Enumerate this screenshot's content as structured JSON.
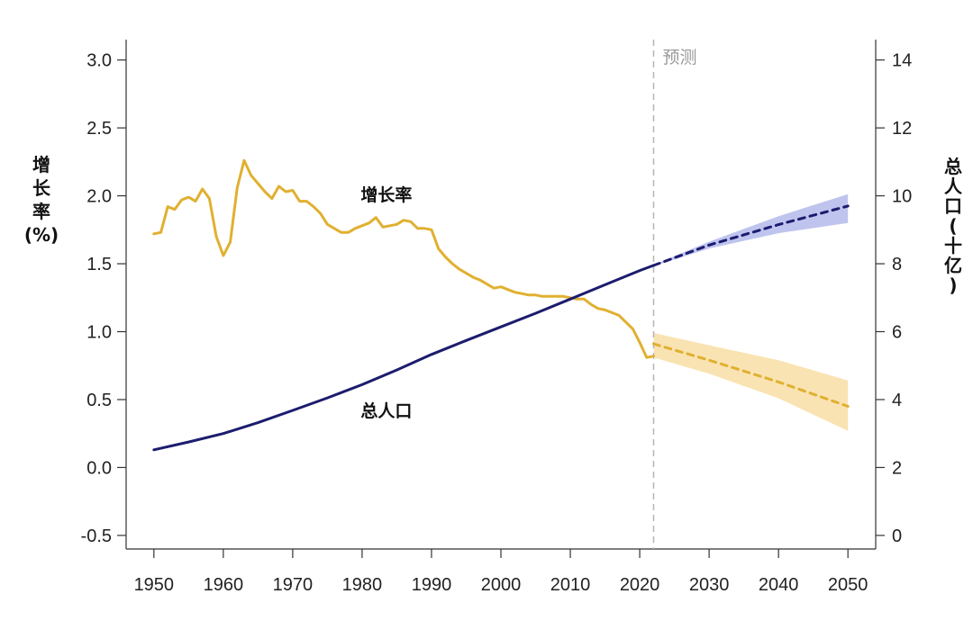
{
  "chart_data": {
    "type": "line",
    "left_axis": {
      "label_lines": [
        "增",
        "长",
        "率",
        "(%)"
      ],
      "range": [
        -0.6,
        3.15
      ],
      "ticks": [
        -0.5,
        0.0,
        0.5,
        1.0,
        1.5,
        2.0,
        2.5,
        3.0
      ],
      "tick_labels": [
        "-0.5",
        "0.0",
        "0.5",
        "1.0",
        "1.5",
        "2.0",
        "2.5",
        "3.0"
      ]
    },
    "right_axis": {
      "label_lines": [
        "总",
        "人",
        "口",
        "(",
        "十",
        "亿",
        ")"
      ],
      "range": [
        -0.4,
        14.6
      ],
      "ticks": [
        0,
        2,
        4,
        6,
        8,
        10,
        12,
        14
      ],
      "tick_labels": [
        "0",
        "2",
        "4",
        "6",
        "8",
        "10",
        "12",
        "14"
      ]
    },
    "x_axis": {
      "range": [
        1946,
        2054
      ],
      "ticks": [
        1950,
        1960,
        1970,
        1980,
        1990,
        2000,
        2010,
        2020,
        2030,
        2040,
        2050
      ],
      "tick_labels": [
        "1950",
        "1960",
        "1970",
        "1980",
        "1990",
        "2000",
        "2010",
        "2020",
        "2030",
        "2040",
        "2050"
      ]
    },
    "forecast_start": 2022,
    "forecast_label": "预测",
    "series": [
      {
        "name": "增长率",
        "axis": "left",
        "color": "#e0b030",
        "x": [
          1950,
          1951,
          1952,
          1953,
          1954,
          1955,
          1956,
          1957,
          1958,
          1959,
          1960,
          1961,
          1962,
          1963,
          1964,
          1965,
          1966,
          1967,
          1968,
          1969,
          1970,
          1971,
          1972,
          1973,
          1974,
          1975,
          1976,
          1977,
          1978,
          1979,
          1980,
          1981,
          1982,
          1983,
          1984,
          1985,
          1986,
          1987,
          1988,
          1989,
          1990,
          1991,
          1992,
          1993,
          1994,
          1995,
          1996,
          1997,
          1998,
          1999,
          2000,
          2001,
          2002,
          2003,
          2004,
          2005,
          2006,
          2007,
          2008,
          2009,
          2010,
          2011,
          2012,
          2013,
          2014,
          2015,
          2016,
          2017,
          2018,
          2019,
          2020,
          2021,
          2022
        ],
        "y": [
          1.72,
          1.73,
          1.92,
          1.9,
          1.97,
          1.99,
          1.96,
          2.05,
          1.98,
          1.7,
          1.56,
          1.66,
          2.06,
          2.26,
          2.15,
          2.09,
          2.03,
          1.98,
          2.07,
          2.03,
          2.04,
          1.96,
          1.96,
          1.92,
          1.87,
          1.79,
          1.76,
          1.73,
          1.73,
          1.76,
          1.78,
          1.8,
          1.84,
          1.77,
          1.78,
          1.79,
          1.82,
          1.81,
          1.76,
          1.76,
          1.75,
          1.61,
          1.55,
          1.5,
          1.46,
          1.43,
          1.4,
          1.38,
          1.35,
          1.32,
          1.33,
          1.31,
          1.29,
          1.28,
          1.27,
          1.27,
          1.26,
          1.26,
          1.26,
          1.26,
          1.25,
          1.24,
          1.24,
          1.2,
          1.17,
          1.16,
          1.14,
          1.12,
          1.07,
          1.02,
          0.92,
          0.81,
          0.82
        ]
      },
      {
        "name": "增长率 预测",
        "axis": "left",
        "color": "#e0b030",
        "band_color": "#f8d998",
        "x": [
          2022,
          2030,
          2040,
          2050
        ],
        "y": [
          0.91,
          0.79,
          0.63,
          0.45
        ],
        "lower": [
          0.81,
          0.69,
          0.51,
          0.27
        ],
        "upper": [
          0.99,
          0.9,
          0.79,
          0.64
        ]
      },
      {
        "name": "总人口",
        "axis": "right",
        "color": "#1c1c6e",
        "x": [
          1950,
          1955,
          1960,
          1965,
          1970,
          1975,
          1980,
          1985,
          1990,
          1995,
          2000,
          2005,
          2010,
          2015,
          2020,
          2022
        ],
        "y": [
          2.52,
          2.75,
          3.0,
          3.32,
          3.68,
          4.05,
          4.44,
          4.87,
          5.33,
          5.74,
          6.14,
          6.54,
          6.96,
          7.38,
          7.8,
          7.95
        ]
      },
      {
        "name": "总人口 预测",
        "axis": "right",
        "color": "#1c1c6e",
        "band_color": "#aab0e8",
        "x": [
          2022,
          2030,
          2040,
          2050
        ],
        "y": [
          7.95,
          8.55,
          9.15,
          9.7
        ],
        "lower": [
          7.93,
          8.45,
          8.9,
          9.2
        ],
        "upper": [
          7.97,
          8.65,
          9.4,
          10.05
        ]
      }
    ],
    "annotations": [
      {
        "text": "增长率",
        "x": 1983.5,
        "y": 2.01,
        "axis": "left"
      },
      {
        "text": "总人口",
        "x": 1983.5,
        "y": 0.42,
        "axis": "left"
      }
    ]
  }
}
